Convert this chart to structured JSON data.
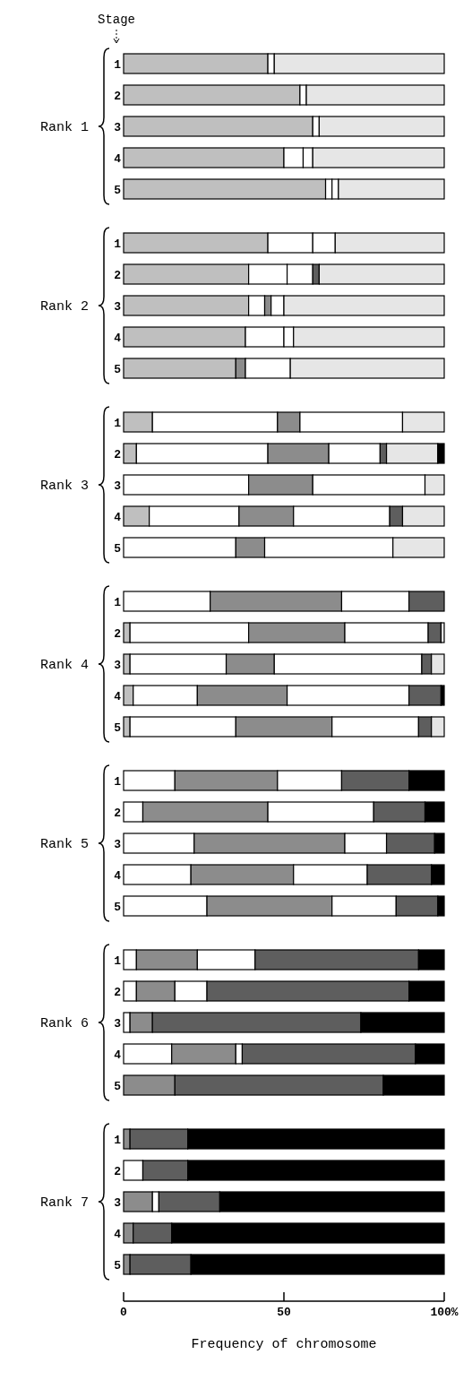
{
  "chart_data": [
    {
      "type": "bar",
      "orientation": "horizontal",
      "stacked": true,
      "ylabel": "Rank 1",
      "annotations": [
        "Stage"
      ],
      "tick_labels": "y",
      "xlim": [
        0,
        100
      ],
      "categories": [
        "1",
        "2",
        "3",
        "4",
        "5"
      ],
      "series": [
        {
          "color": "#bfbfbf",
          "values": [
            45,
            55,
            59,
            50,
            63
          ]
        },
        {
          "color": "#ffffff",
          "values": [
            2,
            2,
            2,
            6,
            2
          ]
        },
        {
          "color": "#ffffff",
          "values": [
            null,
            null,
            null,
            3,
            2
          ]
        },
        {
          "color": "#e6e6e6",
          "values": [
            53,
            43,
            39,
            41,
            33
          ]
        }
      ]
    },
    {
      "type": "bar",
      "orientation": "horizontal",
      "stacked": true,
      "ylabel": "Rank 2",
      "tick_labels": "y",
      "xlim": [
        0,
        100
      ],
      "categories": [
        "1",
        "2",
        "3",
        "4",
        "5"
      ],
      "series": [
        {
          "color": "#bfbfbf",
          "values": [
            45,
            39,
            39,
            38,
            35
          ]
        },
        {
          "color": "#ffffff",
          "values": [
            14,
            12,
            5,
            12,
            null
          ]
        },
        {
          "color": "#8c8c8c",
          "values": [
            null,
            null,
            2,
            null,
            3
          ]
        },
        {
          "color": "#ffffff",
          "values": [
            7,
            8,
            4,
            3,
            14
          ]
        },
        {
          "color": "#5e5e5e",
          "values": [
            null,
            2,
            null,
            null,
            null
          ]
        },
        {
          "color": "#e6e6e6",
          "values": [
            34,
            39,
            50,
            47,
            48
          ]
        }
      ]
    },
    {
      "type": "bar",
      "orientation": "horizontal",
      "stacked": true,
      "ylabel": "Rank 3",
      "tick_labels": "y",
      "xlim": [
        0,
        100
      ],
      "categories": [
        "1",
        "2",
        "3",
        "4",
        "5"
      ],
      "series": [
        {
          "color": "#bfbfbf",
          "values": [
            9,
            4,
            null,
            8,
            null
          ]
        },
        {
          "color": "#ffffff",
          "values": [
            39,
            41,
            39,
            28,
            35
          ]
        },
        {
          "color": "#8c8c8c",
          "values": [
            7,
            19,
            20,
            17,
            9
          ]
        },
        {
          "color": "#ffffff",
          "values": [
            32,
            16,
            35,
            30,
            40
          ]
        },
        {
          "color": "#5e5e5e",
          "values": [
            null,
            2,
            null,
            4,
            null
          ]
        },
        {
          "color": "#e6e6e6",
          "values": [
            13,
            16,
            6,
            13,
            16
          ]
        },
        {
          "color": "#000000",
          "values": [
            null,
            2,
            null,
            null,
            null
          ]
        }
      ]
    },
    {
      "type": "bar",
      "orientation": "horizontal",
      "stacked": true,
      "ylabel": "Rank 4",
      "tick_labels": "y",
      "xlim": [
        0,
        100
      ],
      "categories": [
        "1",
        "2",
        "3",
        "4",
        "5"
      ],
      "series": [
        {
          "color": "#bfbfbf",
          "values": [
            null,
            2,
            2,
            3,
            2
          ]
        },
        {
          "color": "#ffffff",
          "values": [
            27,
            37,
            30,
            20,
            33
          ]
        },
        {
          "color": "#8c8c8c",
          "values": [
            41,
            30,
            15,
            28,
            30
          ]
        },
        {
          "color": "#ffffff",
          "values": [
            21,
            26,
            46,
            38,
            27
          ]
        },
        {
          "color": "#5e5e5e",
          "values": [
            11,
            4,
            3,
            10,
            4
          ]
        },
        {
          "color": "#e6e6e6",
          "values": [
            null,
            1,
            4,
            null,
            4
          ]
        },
        {
          "color": "#000000",
          "values": [
            null,
            null,
            null,
            1,
            null
          ]
        }
      ]
    },
    {
      "type": "bar",
      "orientation": "horizontal",
      "stacked": true,
      "ylabel": "Rank 5",
      "tick_labels": "y",
      "xlim": [
        0,
        100
      ],
      "categories": [
        "1",
        "2",
        "3",
        "4",
        "5"
      ],
      "series": [
        {
          "color": "#ffffff",
          "values": [
            16,
            6,
            22,
            21,
            26
          ]
        },
        {
          "color": "#8c8c8c",
          "values": [
            32,
            39,
            47,
            32,
            39
          ]
        },
        {
          "color": "#ffffff",
          "values": [
            20,
            33,
            13,
            23,
            20
          ]
        },
        {
          "color": "#5e5e5e",
          "values": [
            21,
            16,
            15,
            20,
            13
          ]
        },
        {
          "color": "#000000",
          "values": [
            11,
            6,
            3,
            4,
            2
          ]
        }
      ]
    },
    {
      "type": "bar",
      "orientation": "horizontal",
      "stacked": true,
      "ylabel": "Rank 6",
      "tick_labels": "y",
      "xlim": [
        0,
        100
      ],
      "categories": [
        "1",
        "2",
        "3",
        "4",
        "5"
      ],
      "series": [
        {
          "color": "#ffffff",
          "values": [
            4,
            4,
            2,
            15,
            null
          ]
        },
        {
          "color": "#8c8c8c",
          "values": [
            19,
            12,
            7,
            20,
            16
          ]
        },
        {
          "color": "#ffffff",
          "values": [
            18,
            10,
            null,
            2,
            null
          ]
        },
        {
          "color": "#5e5e5e",
          "values": [
            51,
            63,
            65,
            54,
            65
          ]
        },
        {
          "color": "#000000",
          "values": [
            8,
            11,
            26,
            9,
            19
          ]
        }
      ]
    },
    {
      "type": "bar",
      "orientation": "horizontal",
      "stacked": true,
      "ylabel": "Rank 7",
      "xlabel": "Frequency of chromosome",
      "xlim": [
        0,
        100
      ],
      "xticks": [
        0,
        50,
        {
          "value": 100,
          "label": "100%"
        }
      ],
      "categories": [
        "1",
        "2",
        "3",
        "4",
        "5"
      ],
      "series": [
        {
          "color": "#ffffff",
          "values": [
            null,
            6,
            null,
            null,
            null
          ]
        },
        {
          "color": "#8c8c8c",
          "values": [
            2,
            null,
            9,
            3,
            2
          ]
        },
        {
          "color": "#ffffff",
          "values": [
            null,
            null,
            2,
            null,
            null
          ]
        },
        {
          "color": "#5e5e5e",
          "values": [
            18,
            14,
            19,
            12,
            19
          ]
        },
        {
          "color": "#000000",
          "values": [
            80,
            80,
            70,
            85,
            79
          ]
        }
      ]
    }
  ]
}
